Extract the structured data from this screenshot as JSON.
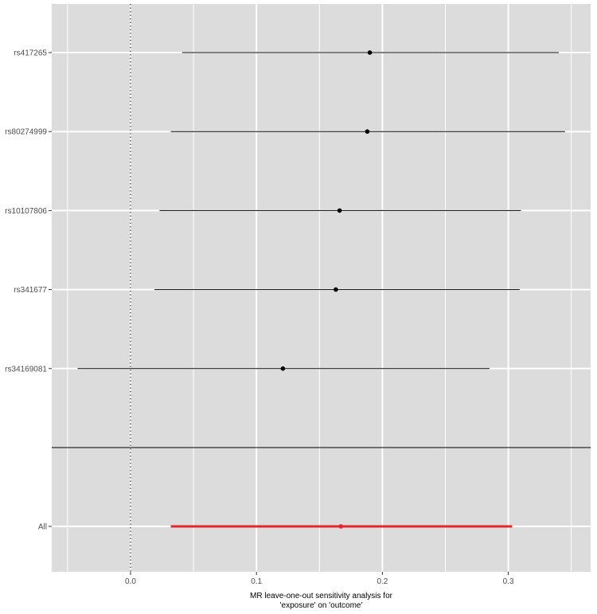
{
  "chart_data": {
    "type": "forest",
    "xlabel_lines": [
      "MR leave-one-out sensitivity analysis for",
      "'exposure' on 'outcome'"
    ],
    "xlim": [
      -0.05,
      0.365
    ],
    "x_ticks": [
      0.0,
      0.1,
      0.2,
      0.3
    ],
    "x_tick_labels": [
      "0.0",
      "0.1",
      "0.2",
      "0.3"
    ],
    "reference_line": 0,
    "grid": true,
    "background_color": "#dcdcdc",
    "point_color": "#000000",
    "overall_color": "#e8242c",
    "rows": [
      {
        "label": "rs417265",
        "estimate": 0.19,
        "lower": 0.041,
        "upper": 0.34
      },
      {
        "label": "rs80274999",
        "estimate": 0.188,
        "lower": 0.032,
        "upper": 0.345
      },
      {
        "label": "rs10107806",
        "estimate": 0.166,
        "lower": 0.023,
        "upper": 0.31
      },
      {
        "label": "rs341677",
        "estimate": 0.163,
        "lower": 0.019,
        "upper": 0.309
      },
      {
        "label": "rs34169081",
        "estimate": 0.121,
        "lower": -0.042,
        "upper": 0.285
      }
    ],
    "overall": {
      "label": "All",
      "estimate": 0.167,
      "lower": 0.032,
      "upper": 0.303
    }
  }
}
